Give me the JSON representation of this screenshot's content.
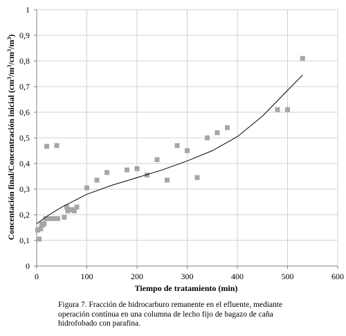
{
  "chart_data": {
    "type": "scatter",
    "xlabel": "Tiempo de tratamiento (min)",
    "ylabel_parts": [
      "Concentación final/Concentración inicial (cm",
      "3",
      "/m",
      "3",
      "/cm",
      "3",
      "/m",
      "3",
      ")"
    ],
    "xlim": [
      0,
      600
    ],
    "ylim": [
      0,
      1
    ],
    "xticks": [
      0,
      100,
      200,
      300,
      400,
      500,
      600
    ],
    "yticks": [
      "0",
      "0,1",
      "0,2",
      "0,3",
      "0,4",
      "0,5",
      "0,6",
      "0,7",
      "0,8",
      "0,9",
      "1"
    ],
    "grid": true,
    "marker_color": "#a6a6a6",
    "line_color": "#000000",
    "series": [
      {
        "kind": "points",
        "x": [
          2,
          5,
          8,
          10,
          12,
          15,
          18,
          20,
          25,
          30,
          35,
          40,
          42,
          55,
          60,
          62,
          65,
          70,
          75,
          80,
          100,
          120,
          140,
          180,
          200,
          220,
          240,
          260,
          280,
          300,
          320,
          340,
          360,
          380,
          480,
          500,
          530
        ],
        "y": [
          0.14,
          0.105,
          0.145,
          0.165,
          0.16,
          0.165,
          0.185,
          0.467,
          0.185,
          0.185,
          0.185,
          0.47,
          0.185,
          0.19,
          0.23,
          0.215,
          0.22,
          0.22,
          0.215,
          0.23,
          0.305,
          0.335,
          0.365,
          0.375,
          0.38,
          0.355,
          0.415,
          0.335,
          0.47,
          0.45,
          0.345,
          0.5,
          0.52,
          0.54,
          0.61,
          0.61,
          0.81
        ]
      },
      {
        "kind": "trend",
        "x": [
          0,
          25,
          50,
          100,
          150,
          200,
          250,
          300,
          350,
          400,
          450,
          500,
          530
        ],
        "y": [
          0.165,
          0.2,
          0.23,
          0.28,
          0.315,
          0.345,
          0.375,
          0.41,
          0.45,
          0.505,
          0.585,
          0.685,
          0.745
        ]
      }
    ]
  },
  "caption": {
    "line1": "Figura 7. Fracción de hidrocarburo remanente en el efluente, mediante",
    "line2": "operación contínua en una columna de lecho fijo de bagazo de caña",
    "line3": "hidrofobado con parafina."
  }
}
